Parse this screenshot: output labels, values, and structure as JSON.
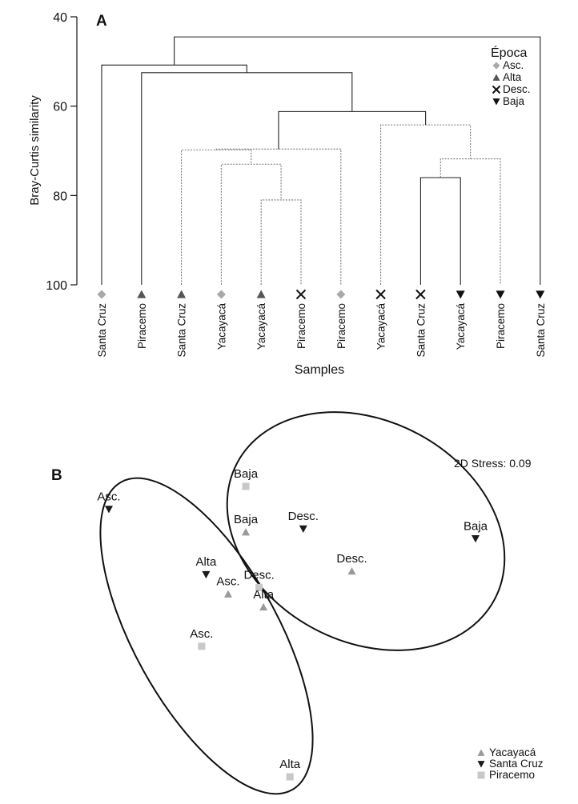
{
  "chart_data": [
    {
      "panel": "A",
      "type": "dendrogram",
      "ylabel": "Bray-Curtis similarity",
      "xlabel": "Samples",
      "ylim": [
        40,
        100
      ],
      "yticks": [
        40,
        60,
        80,
        100
      ],
      "legend": {
        "title": "Época",
        "placement": "top-right",
        "entries": [
          {
            "label": "Asc.",
            "marker": "diamond",
            "color": "#a8a8a8"
          },
          {
            "label": "Alta",
            "marker": "triangle-up",
            "color": "#555555"
          },
          {
            "label": "Desc.",
            "marker": "cross",
            "color": "#111111"
          },
          {
            "label": "Baja",
            "marker": "triangle-down",
            "color": "#111111"
          }
        ]
      },
      "leaves": [
        {
          "label": "Santa Cruz",
          "marker": "diamond"
        },
        {
          "label": "Piracemo",
          "marker": "triangle-up"
        },
        {
          "label": "Santa Cruz",
          "marker": "triangle-up"
        },
        {
          "label": "Yacayacá",
          "marker": "diamond"
        },
        {
          "label": "Yacayacá",
          "marker": "triangle-up"
        },
        {
          "label": "Piracemo",
          "marker": "cross"
        },
        {
          "label": "Piracemo",
          "marker": "diamond"
        },
        {
          "label": "Yacayacá",
          "marker": "cross"
        },
        {
          "label": "Santa Cruz",
          "marker": "cross"
        },
        {
          "label": "Yacayacá",
          "marker": "triangle-down"
        },
        {
          "label": "Piracemo",
          "marker": "triangle-down"
        },
        {
          "label": "Santa Cruz",
          "marker": "triangle-down"
        }
      ],
      "merges": [
        {
          "a": "L4",
          "b": "L5",
          "sim": 81.0,
          "dotted": true
        },
        {
          "a": "L3",
          "b": "N0",
          "sim": 73.0,
          "dotted": true
        },
        {
          "a": "L8",
          "b": "L9",
          "sim": 76.0,
          "dotted": false
        },
        {
          "a": "N2",
          "b": "L10",
          "sim": 71.8,
          "dotted": true
        },
        {
          "a": "L7",
          "b": "N3",
          "sim": 64.2,
          "dotted": true
        },
        {
          "a": "L2",
          "b": "N1",
          "sim": 69.8,
          "dotted": true
        },
        {
          "a": "N5",
          "b": "L6",
          "sim": 69.6,
          "dotted": true
        },
        {
          "a": "N6",
          "b": "N4",
          "sim": 61.2,
          "dotted": false
        },
        {
          "a": "L1",
          "b": "N7",
          "sim": 52.5,
          "dotted": false
        },
        {
          "a": "L0",
          "b": "N8",
          "sim": 50.8,
          "dotted": false
        },
        {
          "a": "N9",
          "b": "L11",
          "sim": 44.5,
          "dotted": false
        }
      ]
    },
    {
      "panel": "B",
      "type": "scatter",
      "annotation": "2D Stress: 0.09",
      "xlim": [
        0,
        100
      ],
      "ylim": [
        0,
        100
      ],
      "legend": {
        "placement": "bottom-right",
        "entries": [
          {
            "label": "Yacayacá",
            "marker": "triangle-up",
            "color": "#9a9a9a"
          },
          {
            "label": "Santa Cruz",
            "marker": "triangle-down",
            "color": "#1a1a1a"
          },
          {
            "label": "Piracemo",
            "marker": "square",
            "color": "#c8c8c8"
          }
        ]
      },
      "points": [
        {
          "label": "Baja",
          "site": "Piracemo",
          "x": 34,
          "y": 91
        },
        {
          "label": "Asc.",
          "site": "Santa Cruz",
          "x": 3,
          "y": 84
        },
        {
          "label": "Baja",
          "site": "Yacayacá",
          "x": 34,
          "y": 77
        },
        {
          "label": "Desc.",
          "site": "Santa Cruz",
          "x": 47,
          "y": 78
        },
        {
          "label": "Baja",
          "site": "Santa Cruz",
          "x": 86,
          "y": 75
        },
        {
          "label": "Desc.",
          "site": "Yacayacá",
          "x": 58,
          "y": 65
        },
        {
          "label": "Alta",
          "site": "Santa Cruz",
          "x": 25,
          "y": 64
        },
        {
          "label": "Asc.",
          "site": "Yacayacá",
          "x": 30,
          "y": 58
        },
        {
          "label": "Desc.",
          "site": "Piracemo",
          "x": 37,
          "y": 60
        },
        {
          "label": "Alta",
          "site": "Yacayacá",
          "x": 38,
          "y": 54
        },
        {
          "label": "Asc.",
          "site": "Piracemo",
          "x": 24,
          "y": 42
        },
        {
          "label": "Alta",
          "site": "Piracemo",
          "x": 44,
          "y": 2
        }
      ]
    }
  ]
}
